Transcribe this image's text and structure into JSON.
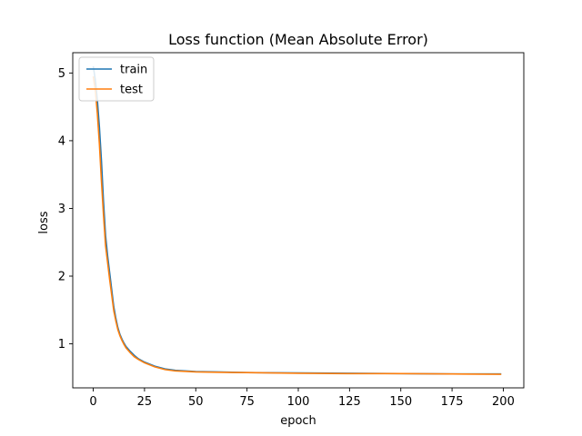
{
  "chart_data": {
    "type": "line",
    "title": "Loss function (Mean Absolute Error)",
    "xlabel": "epoch",
    "ylabel": "loss",
    "xlim": [
      -10,
      210
    ],
    "ylim": [
      0.35,
      5.3
    ],
    "xticks": [
      0,
      25,
      50,
      75,
      100,
      125,
      150,
      175,
      200
    ],
    "yticks": [
      1,
      2,
      3,
      4,
      5
    ],
    "grid": false,
    "legend": {
      "position": "top-left"
    },
    "series": [
      {
        "name": "train",
        "color": "#1f77b4",
        "x": [
          0,
          1,
          2,
          3,
          4,
          5,
          6,
          7,
          8,
          9,
          10,
          11,
          12,
          13,
          14,
          15,
          16,
          18,
          20,
          22,
          25,
          30,
          35,
          40,
          50,
          60,
          75,
          100,
          125,
          150,
          175,
          199
        ],
        "y": [
          5.1,
          4.9,
          4.6,
          4.2,
          3.7,
          3.1,
          2.6,
          2.3,
          2.05,
          1.8,
          1.55,
          1.38,
          1.24,
          1.14,
          1.07,
          1.01,
          0.96,
          0.89,
          0.83,
          0.78,
          0.73,
          0.67,
          0.63,
          0.61,
          0.59,
          0.585,
          0.575,
          0.57,
          0.565,
          0.56,
          0.555,
          0.555
        ]
      },
      {
        "name": "test",
        "color": "#ff7f0e",
        "x": [
          0,
          1,
          2,
          3,
          4,
          5,
          6,
          7,
          8,
          9,
          10,
          11,
          12,
          13,
          14,
          15,
          16,
          18,
          20,
          22,
          25,
          30,
          35,
          40,
          50,
          60,
          75,
          100,
          125,
          150,
          175,
          199
        ],
        "y": [
          4.95,
          4.75,
          4.4,
          3.95,
          3.4,
          2.9,
          2.45,
          2.2,
          1.95,
          1.72,
          1.49,
          1.34,
          1.21,
          1.12,
          1.05,
          0.99,
          0.94,
          0.87,
          0.81,
          0.77,
          0.72,
          0.66,
          0.62,
          0.6,
          0.585,
          0.58,
          0.575,
          0.565,
          0.56,
          0.56,
          0.555,
          0.55
        ]
      }
    ]
  }
}
